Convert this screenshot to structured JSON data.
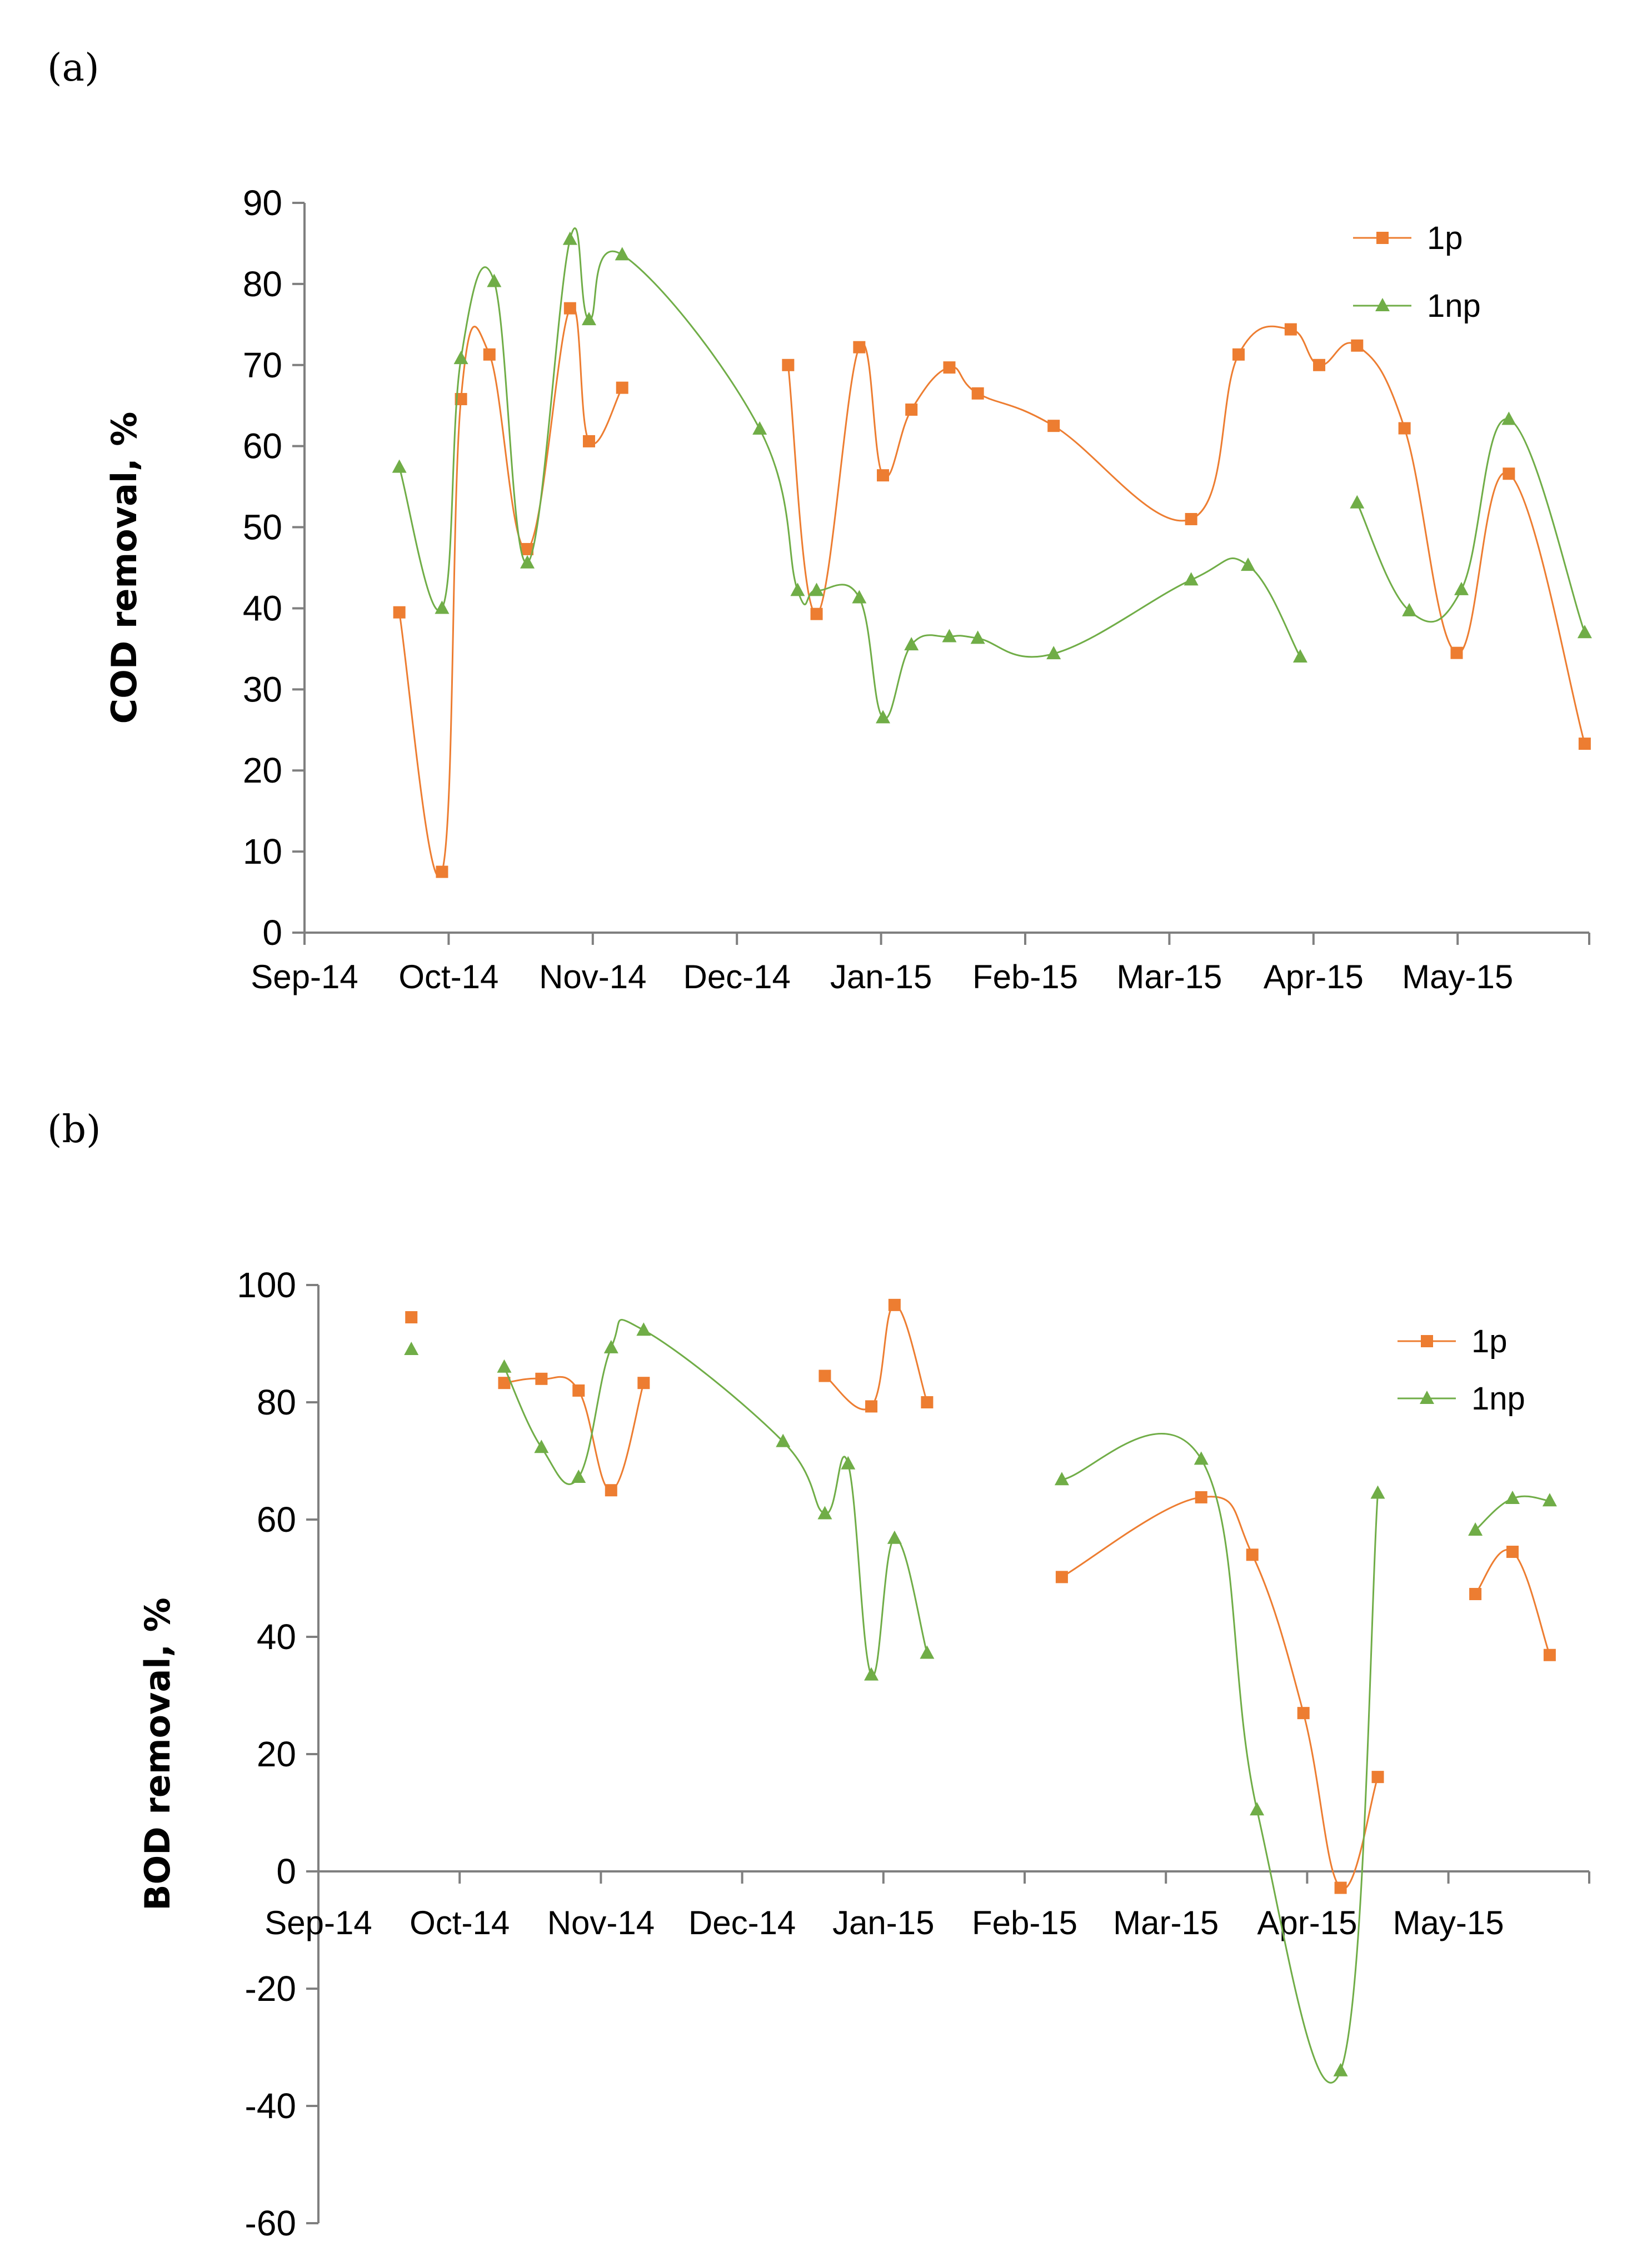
{
  "chart_data": [
    {
      "panel": "(a)",
      "type": "line",
      "ylabel": "COD removal, %",
      "xlabel": "",
      "ylim": [
        0,
        90
      ],
      "yticks": [
        0,
        10,
        20,
        30,
        40,
        50,
        60,
        70,
        80,
        90
      ],
      "xticks": [
        "Sep-14",
        "Oct-14",
        "Nov-14",
        "Dec-14",
        "Jan-15",
        "Feb-15",
        "Mar-15",
        "Apr-15",
        "May-15"
      ],
      "legend_position": "top-right",
      "series": [
        {
          "name": "1p",
          "color": "#ED7D31",
          "marker": "square",
          "segments": [
            [
              [
                20,
                39.5
              ],
              [
                29,
                7.5
              ],
              [
                33,
                65.8
              ],
              [
                39,
                71.3
              ],
              [
                47,
                47.3
              ],
              [
                56,
                77
              ],
              [
                60,
                60.6
              ],
              [
                67,
                67.2
              ]
            ],
            [
              [
                102,
                70
              ],
              [
                108,
                39.3
              ],
              [
                117,
                72.2
              ],
              [
                122,
                56.4
              ],
              [
                128,
                64.5
              ],
              [
                136,
                69.7
              ],
              [
                142,
                66.5
              ],
              [
                158,
                62.5
              ],
              [
                187,
                51
              ],
              [
                197,
                71.3
              ],
              [
                208,
                74.4
              ],
              [
                214,
                70
              ],
              [
                222,
                72.4
              ],
              [
                232,
                62.2
              ],
              [
                243,
                34.5
              ],
              [
                254,
                56.6
              ],
              [
                270,
                23.3
              ]
            ]
          ]
        },
        {
          "name": "1np",
          "color": "#70AD47",
          "marker": "triangle",
          "segments": [
            [
              [
                20,
                57.4
              ],
              [
                29,
                40
              ],
              [
                33,
                70.8
              ],
              [
                40,
                80.3
              ],
              [
                47,
                45.6
              ],
              [
                56,
                85.5
              ],
              [
                60,
                75.6
              ],
              [
                67,
                83.6
              ],
              [
                96,
                62.1
              ],
              [
                104,
                42.2
              ],
              [
                108,
                42.2
              ],
              [
                117,
                41.3
              ],
              [
                122,
                26.5
              ],
              [
                128,
                35.5
              ],
              [
                136,
                36.5
              ],
              [
                142,
                36.3
              ],
              [
                158,
                34.4
              ],
              [
                187,
                43.5
              ],
              [
                199,
                45.3
              ],
              [
                210,
                34
              ]
            ],
            [
              [
                222,
                53
              ],
              [
                233,
                39.7
              ],
              [
                244,
                42.3
              ],
              [
                254,
                63.3
              ],
              [
                270,
                37
              ]
            ]
          ]
        }
      ]
    },
    {
      "panel": "(b)",
      "type": "line",
      "ylabel": "BOD removal, %",
      "xlabel": "",
      "ylim": [
        -60,
        100
      ],
      "yticks": [
        -60,
        -40,
        -20,
        0,
        20,
        40,
        60,
        80,
        100
      ],
      "xticks": [
        "Sep-14",
        "Oct-14",
        "Nov-14",
        "Dec-14",
        "Jan-15",
        "Feb-15",
        "Mar-15",
        "Apr-15",
        "May-15"
      ],
      "legend_position": "top-right",
      "series": [
        {
          "name": "1p",
          "color": "#ED7D31",
          "marker": "square",
          "segments": [
            [
              [
                20,
                94.5
              ]
            ],
            [
              [
                40,
                83.3
              ],
              [
                48,
                84
              ],
              [
                56,
                82
              ],
              [
                63,
                65
              ],
              [
                70,
                83.3
              ]
            ],
            [
              [
                109,
                84.5
              ],
              [
                119,
                79.3
              ],
              [
                124,
                96.6
              ],
              [
                131,
                80
              ]
            ],
            [
              [
                160,
                50.2
              ],
              [
                190,
                63.8
              ],
              [
                201,
                54
              ],
              [
                212,
                27
              ],
              [
                220,
                -2.8
              ],
              [
                228,
                16.1
              ]
            ],
            [
              [
                249,
                47.3
              ],
              [
                257,
                54.5
              ],
              [
                265,
                36.9
              ]
            ]
          ]
        },
        {
          "name": "1np",
          "color": "#70AD47",
          "marker": "triangle",
          "segments": [
            [
              [
                20,
                89
              ]
            ],
            [
              [
                40,
                86
              ],
              [
                48,
                72.3
              ],
              [
                56,
                67.2
              ],
              [
                63,
                89.3
              ],
              [
                70,
                92.3
              ],
              [
                100,
                73.3
              ],
              [
                109,
                61
              ],
              [
                114,
                69.5
              ],
              [
                119,
                33.5
              ],
              [
                124,
                56.8
              ],
              [
                131,
                37.2
              ]
            ],
            [
              [
                160,
                66.8
              ],
              [
                190,
                70.3
              ],
              [
                202,
                10.5
              ],
              [
                220,
                -34
              ],
              [
                228,
                64.5
              ]
            ],
            [
              [
                249,
                58.2
              ],
              [
                257,
                63.6
              ],
              [
                265,
                63.2
              ]
            ]
          ]
        }
      ]
    }
  ]
}
